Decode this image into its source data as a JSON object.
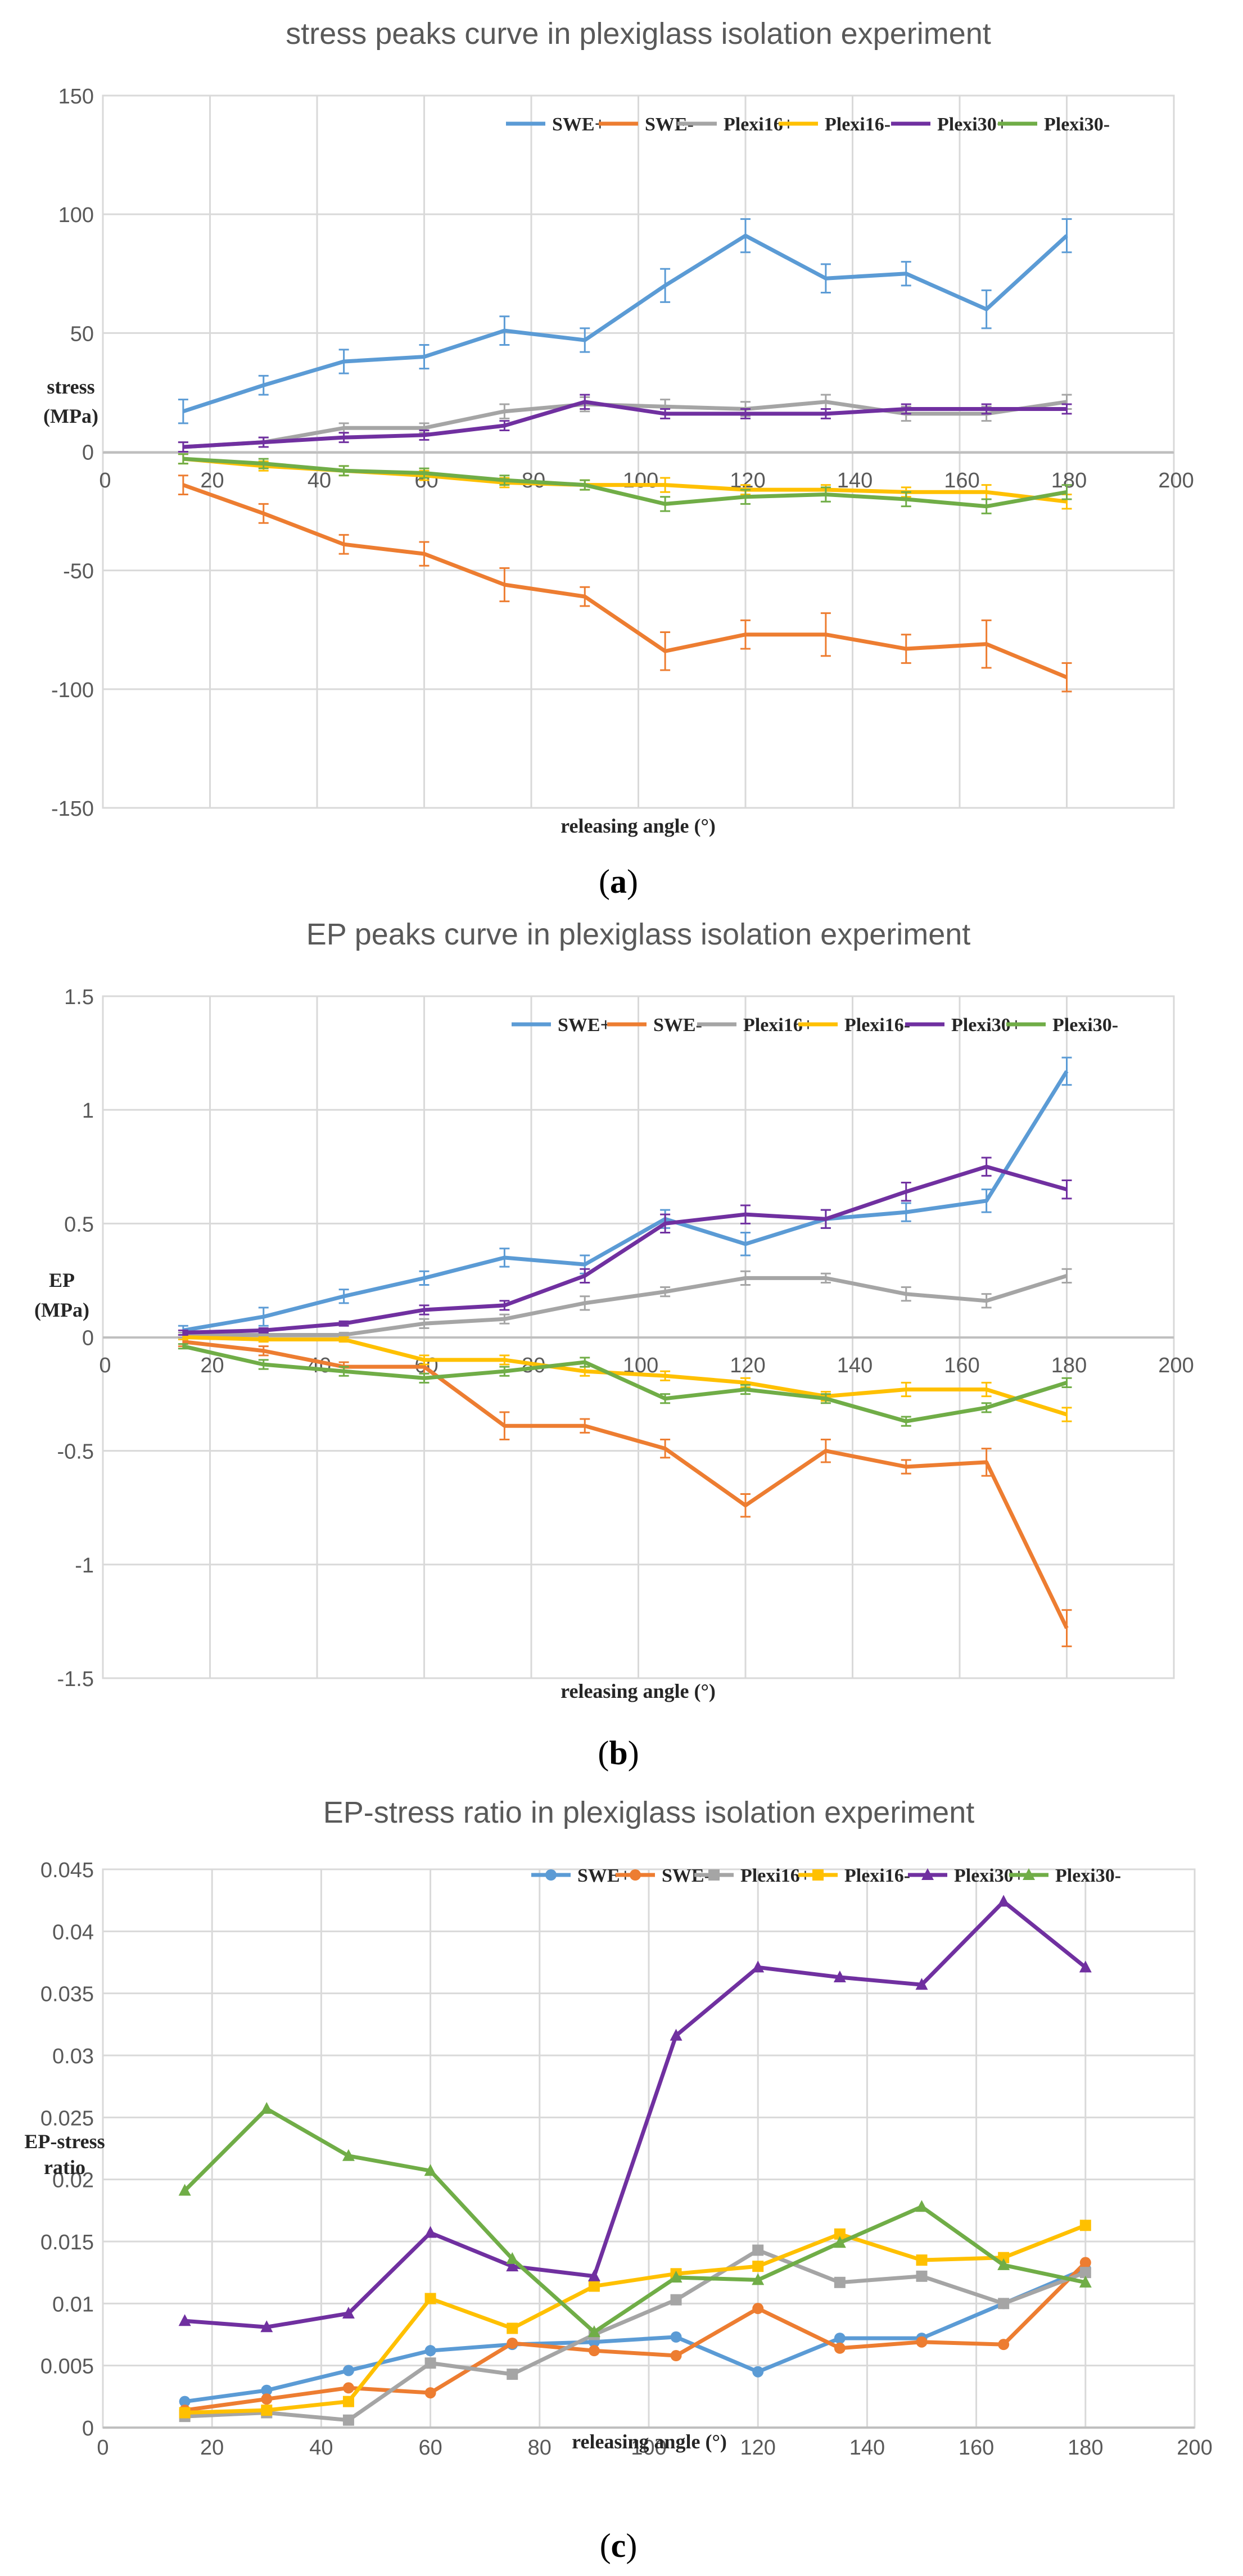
{
  "chart_data": [
    {
      "panel_label": "a",
      "type": "line",
      "title": "stress peaks curve in plexiglass isolation experiment",
      "xlabel": "releasing angle (°)",
      "ylabel_line1": "stress",
      "ylabel_line2": "(MPa)",
      "xlim": [
        0,
        200
      ],
      "ylim": [
        -150,
        150
      ],
      "xticks": [
        0,
        20,
        40,
        60,
        80,
        100,
        120,
        140,
        160,
        180,
        200
      ],
      "yticks": [
        -150,
        -100,
        -50,
        0,
        50,
        100,
        150
      ],
      "x": [
        15,
        30,
        45,
        60,
        75,
        90,
        105,
        120,
        135,
        150,
        165,
        180
      ],
      "grid": true,
      "legend": "top-right",
      "error_bars": true,
      "markers": false,
      "series": [
        {
          "name": "SWE+",
          "color": "#5B9BD5",
          "values": [
            17,
            28,
            38,
            40,
            51,
            47,
            70,
            91,
            73,
            75,
            60,
            91
          ],
          "errors": [
            5,
            4,
            5,
            5,
            6,
            5,
            7,
            7,
            6,
            5,
            8,
            7
          ]
        },
        {
          "name": "SWE-",
          "color": "#ED7D31",
          "values": [
            -14,
            -26,
            -39,
            -43,
            -56,
            -61,
            -84,
            -77,
            -77,
            -83,
            -81,
            -95
          ],
          "errors": [
            4,
            4,
            4,
            5,
            7,
            4,
            8,
            6,
            9,
            6,
            10,
            6
          ]
        },
        {
          "name": "Plexi16+",
          "color": "#A5A5A5",
          "values": [
            2,
            4,
            10,
            10,
            17,
            20,
            19,
            18,
            21,
            16,
            16,
            21
          ],
          "errors": [
            2,
            2,
            2,
            2,
            3,
            3,
            3,
            3,
            3,
            3,
            3,
            3
          ]
        },
        {
          "name": "Plexi16-",
          "color": "#FFC000",
          "values": [
            -3,
            -6,
            -8,
            -10,
            -13,
            -14,
            -14,
            -16,
            -16,
            -17,
            -17,
            -21
          ],
          "errors": [
            2,
            2,
            2,
            2,
            2,
            2,
            3,
            2,
            2,
            2,
            3,
            3
          ]
        },
        {
          "name": "Plexi30+",
          "color": "#7030A0",
          "values": [
            2,
            4,
            6,
            7,
            11,
            21,
            16,
            16,
            16,
            18,
            18,
            18
          ],
          "errors": [
            2,
            2,
            2,
            2,
            2,
            3,
            2,
            2,
            2,
            2,
            2,
            2
          ]
        },
        {
          "name": "Plexi30-",
          "color": "#70AD47",
          "values": [
            -3,
            -5,
            -8,
            -9,
            -12,
            -14,
            -22,
            -19,
            -18,
            -20,
            -23,
            -17
          ],
          "errors": [
            2,
            2,
            2,
            2,
            2,
            2,
            3,
            3,
            3,
            3,
            3,
            3
          ]
        }
      ]
    },
    {
      "panel_label": "b",
      "type": "line",
      "title": "EP peaks curve in plexiglass isolation experiment",
      "xlabel": "releasing angle (°)",
      "ylabel_line1": "EP",
      "ylabel_line2": "(MPa)",
      "xlim": [
        0,
        200
      ],
      "ylim": [
        -1.5,
        1.5
      ],
      "xticks": [
        0,
        20,
        40,
        60,
        80,
        100,
        120,
        140,
        160,
        180,
        200
      ],
      "yticks": [
        -1.5,
        -1,
        -0.5,
        0,
        0.5,
        1,
        1.5
      ],
      "x": [
        15,
        30,
        45,
        60,
        75,
        90,
        105,
        120,
        135,
        150,
        165,
        180
      ],
      "grid": true,
      "legend": "top-right",
      "error_bars": true,
      "markers": false,
      "series": [
        {
          "name": "SWE+",
          "color": "#5B9BD5",
          "values": [
            0.03,
            0.09,
            0.18,
            0.26,
            0.35,
            0.32,
            0.52,
            0.41,
            0.52,
            0.55,
            0.6,
            1.17
          ],
          "errors": [
            0.02,
            0.04,
            0.03,
            0.03,
            0.04,
            0.04,
            0.04,
            0.05,
            0.04,
            0.04,
            0.05,
            0.06
          ]
        },
        {
          "name": "SWE-",
          "color": "#ED7D31",
          "values": [
            -0.02,
            -0.06,
            -0.13,
            -0.13,
            -0.39,
            -0.39,
            -0.49,
            -0.74,
            -0.5,
            -0.57,
            -0.55,
            -1.28
          ],
          "errors": [
            0.02,
            0.02,
            0.02,
            0.03,
            0.06,
            0.03,
            0.04,
            0.05,
            0.05,
            0.03,
            0.06,
            0.08
          ]
        },
        {
          "name": "Plexi16+",
          "color": "#A5A5A5",
          "values": [
            0.01,
            0.01,
            0.01,
            0.06,
            0.08,
            0.15,
            0.2,
            0.26,
            0.26,
            0.19,
            0.16,
            0.27
          ],
          "errors": [
            0.01,
            0.01,
            0.01,
            0.02,
            0.02,
            0.03,
            0.02,
            0.03,
            0.02,
            0.03,
            0.03,
            0.03
          ]
        },
        {
          "name": "Plexi16-",
          "color": "#FFC000",
          "values": [
            0,
            -0.01,
            -0.01,
            -0.1,
            -0.1,
            -0.15,
            -0.17,
            -0.2,
            -0.26,
            -0.23,
            -0.23,
            -0.34
          ],
          "errors": [
            0.01,
            0.01,
            0.01,
            0.02,
            0.02,
            0.02,
            0.02,
            0.02,
            0.02,
            0.03,
            0.03,
            0.03
          ]
        },
        {
          "name": "Plexi30+",
          "color": "#7030A0",
          "values": [
            0.02,
            0.03,
            0.06,
            0.12,
            0.14,
            0.27,
            0.5,
            0.54,
            0.52,
            0.64,
            0.75,
            0.65
          ],
          "errors": [
            0.01,
            0.01,
            0.01,
            0.02,
            0.02,
            0.03,
            0.04,
            0.04,
            0.04,
            0.04,
            0.04,
            0.04
          ]
        },
        {
          "name": "Plexi30-",
          "color": "#70AD47",
          "values": [
            -0.04,
            -0.12,
            -0.15,
            -0.18,
            -0.15,
            -0.11,
            -0.27,
            -0.23,
            -0.27,
            -0.37,
            -0.31,
            -0.2
          ],
          "errors": [
            0.01,
            0.02,
            0.02,
            0.02,
            0.02,
            0.02,
            0.02,
            0.02,
            0.02,
            0.02,
            0.02,
            0.02
          ]
        }
      ]
    },
    {
      "panel_label": "c",
      "type": "line",
      "title": "EP-stress ratio in plexiglass isolation experiment",
      "xlabel": "releasing angle (°)",
      "ylabel_line1": "EP-stress",
      "ylabel_line2": "ratio",
      "xlim": [
        0,
        200
      ],
      "ylim": [
        0,
        0.045
      ],
      "xticks": [
        0,
        20,
        40,
        60,
        80,
        100,
        120,
        140,
        160,
        180,
        200
      ],
      "yticks": [
        0,
        0.005,
        0.01,
        0.015,
        0.02,
        0.025,
        0.03,
        0.035,
        0.04,
        0.045
      ],
      "x": [
        15,
        30,
        45,
        60,
        75,
        90,
        105,
        120,
        135,
        150,
        165,
        180
      ],
      "grid": true,
      "legend": "top-right",
      "error_bars": false,
      "markers": true,
      "series": [
        {
          "name": "SWE+",
          "color": "#5B9BD5",
          "marker": "circle",
          "values": [
            0.0021,
            0.003,
            0.0046,
            0.0062,
            0.0067,
            0.0069,
            0.0073,
            0.0045,
            0.0072,
            0.0072,
            0.01,
            0.0128
          ]
        },
        {
          "name": "SWE-",
          "color": "#ED7D31",
          "marker": "circle",
          "values": [
            0.0014,
            0.0023,
            0.0032,
            0.0028,
            0.0068,
            0.0062,
            0.0058,
            0.0096,
            0.0064,
            0.0069,
            0.0067,
            0.0133
          ]
        },
        {
          "name": "Plexi16+",
          "color": "#A5A5A5",
          "marker": "square",
          "values": [
            0.0009,
            0.0012,
            0.0006,
            0.0052,
            0.0043,
            0.0075,
            0.0103,
            0.0143,
            0.0117,
            0.0122,
            0.01,
            0.0125
          ]
        },
        {
          "name": "Plexi16-",
          "color": "#FFC000",
          "marker": "square",
          "values": [
            0.0012,
            0.0014,
            0.0021,
            0.0104,
            0.008,
            0.0114,
            0.0124,
            0.013,
            0.0156,
            0.0135,
            0.0137,
            0.0163
          ]
        },
        {
          "name": "Plexi30+",
          "color": "#7030A0",
          "marker": "triangle",
          "values": [
            0.0086,
            0.0081,
            0.0092,
            0.0157,
            0.013,
            0.0122,
            0.0316,
            0.0371,
            0.0363,
            0.0357,
            0.0424,
            0.0371
          ]
        },
        {
          "name": "Plexi30-",
          "color": "#70AD47",
          "marker": "triangle",
          "values": [
            0.0191,
            0.0257,
            0.0219,
            0.0207,
            0.0136,
            0.0077,
            0.0121,
            0.0119,
            0.0149,
            0.0178,
            0.0131,
            0.0117
          ]
        }
      ]
    }
  ]
}
